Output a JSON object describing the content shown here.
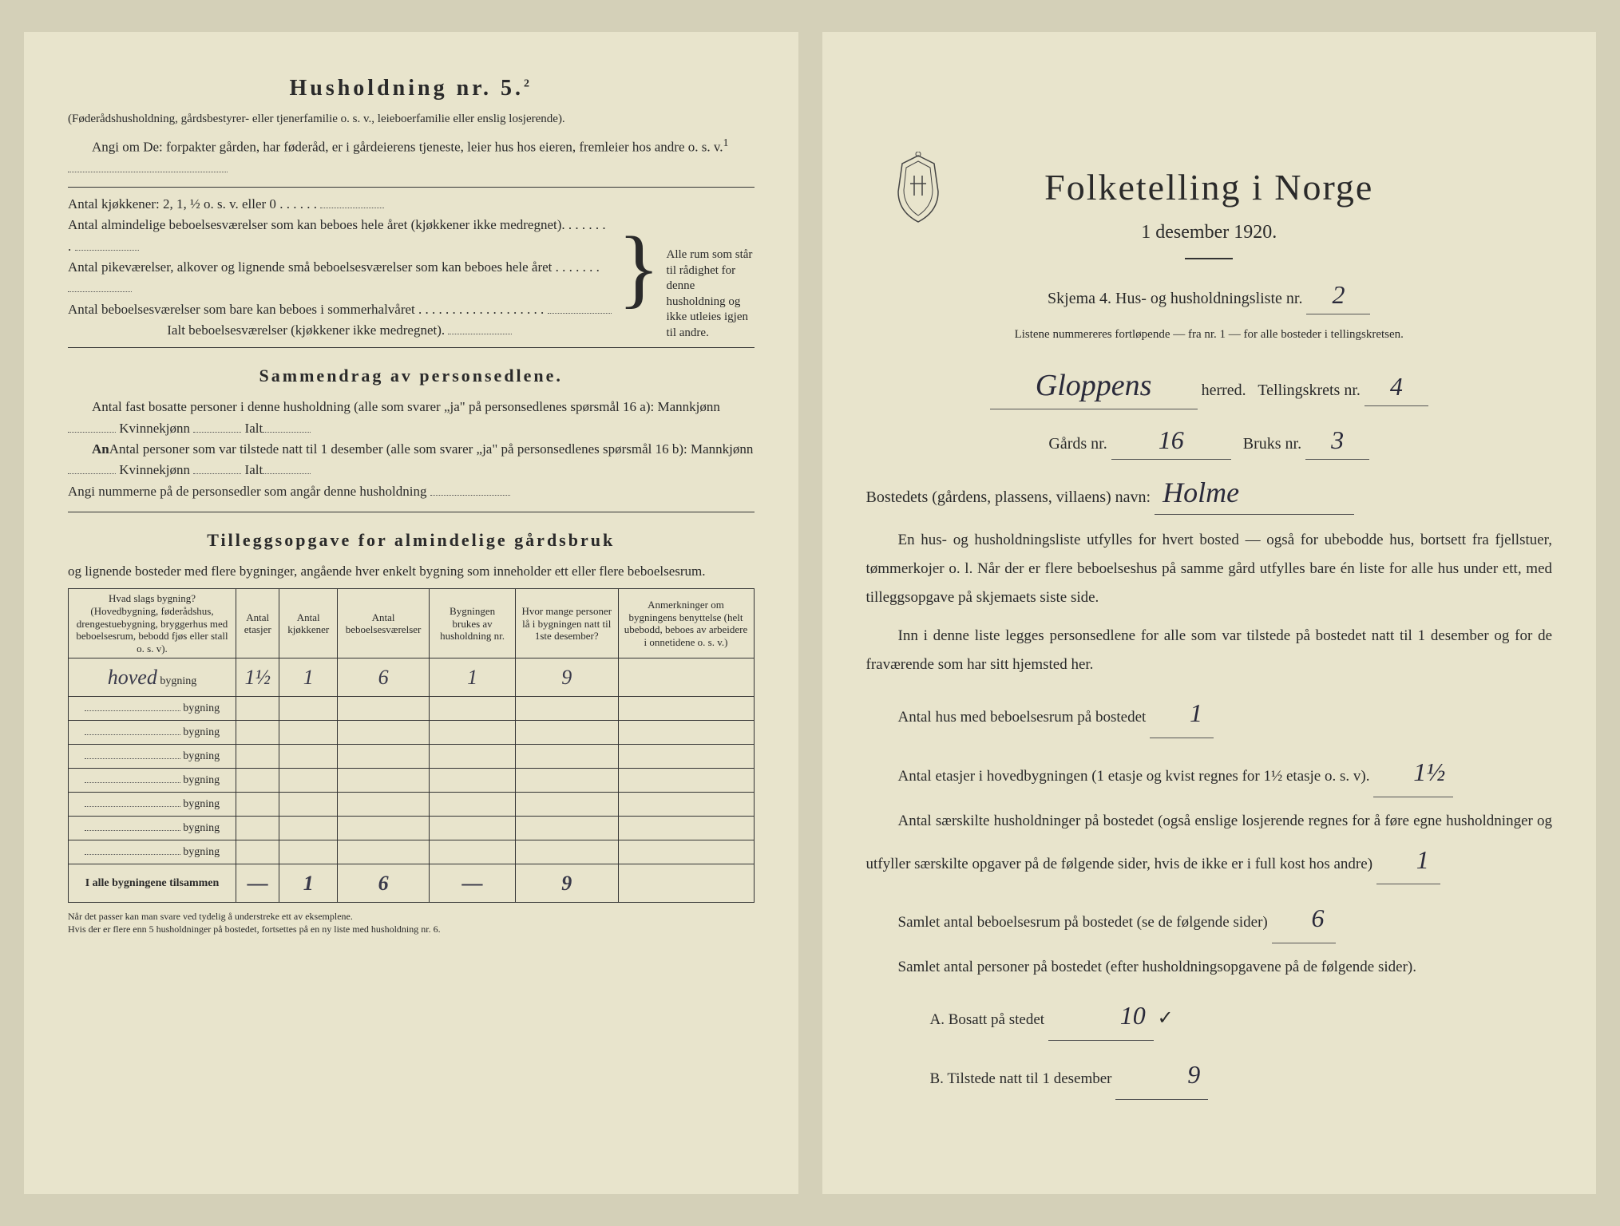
{
  "left": {
    "husholdning_title": "Husholdning nr. 5.",
    "husholdning_sup": "2",
    "husholdning_sub": "(Føderådshusholdning, gårdsbestyrer- eller tjenerfamilie o. s. v., leieboerfamilie eller enslig losjerende).",
    "angi_text": "Angi om De: forpakter gården, har føderåd, er i gårdeierens tjeneste, leier hus hos eieren, fremleier hos andre o. s. v.",
    "angi_sup": "1",
    "kjokken_line": "Antal kjøkkener: 2, 1, ½ o. s. v. eller 0",
    "lines": [
      "Antal almindelige beboelsesværelser som kan beboes hele året (kjøkkener ikke medregnet).",
      "Antal pikeværelser, alkover og lignende små beboelsesværelser som kan beboes hele året",
      "Antal beboelsesværelser som bare kan beboes i sommerhalvåret"
    ],
    "ialt_line": "Ialt beboelsesværelser (kjøkkener ikke medregnet).",
    "bracket_text": "Alle rum som står til rådighet for denne husholdning og ikke utleies igjen til andre.",
    "sammendrag_title": "Sammendrag av personsedlene.",
    "sammendrag_p1a": "Antal fast bosatte personer i denne husholdning (alle som svarer „ja\" på personsedlenes spørsmål 16 a): Mannkjønn",
    "sammendrag_p1b": "Kvinnekjønn",
    "sammendrag_p1c": "Ialt",
    "sammendrag_p2a": "Antal personer som var tilstede natt til 1 desember (alle som svarer „ja\" på personsedlenes spørsmål 16 b): Mannkjønn",
    "sammendrag_p2b": "Kvinnekjønn",
    "sammendrag_p2c": "Ialt",
    "angi_num": "Angi nummerne på de personsedler som angår denne husholdning",
    "tillegg_title": "Tilleggsopgave for almindelige gårdsbruk",
    "tillegg_sub": "og lignende bosteder med flere bygninger, angående hver enkelt bygning som inneholder ett eller flere beboelsesrum.",
    "table": {
      "headers": [
        "Hvad slags bygning?\n(Hovedbygning, føderådshus, drengestuebygning, bryggerhus med beboelsesrum, bebodd fjøs eller stall o. s. v).",
        "Antal etasjer",
        "Antal kjøkkener",
        "Antal beboelsesværelser",
        "Bygningen brukes av husholdning nr.",
        "Hvor mange personer lå i bygningen natt til 1ste desember?",
        "Anmerkninger om bygningens benyttelse (helt ubebodd, beboes av arbeidere i onnetidene o. s. v.)"
      ],
      "rows": [
        {
          "label_hw": "hoved",
          "suffix": "bygning",
          "cells": [
            "1½",
            "1",
            "6",
            "1",
            "9",
            ""
          ]
        },
        {
          "label_hw": "",
          "suffix": "bygning",
          "cells": [
            "",
            "",
            "",
            "",
            "",
            ""
          ]
        },
        {
          "label_hw": "",
          "suffix": "bygning",
          "cells": [
            "",
            "",
            "",
            "",
            "",
            ""
          ]
        },
        {
          "label_hw": "",
          "suffix": "bygning",
          "cells": [
            "",
            "",
            "",
            "",
            "",
            ""
          ]
        },
        {
          "label_hw": "",
          "suffix": "bygning",
          "cells": [
            "",
            "",
            "",
            "",
            "",
            ""
          ]
        },
        {
          "label_hw": "",
          "suffix": "bygning",
          "cells": [
            "",
            "",
            "",
            "",
            "",
            ""
          ]
        },
        {
          "label_hw": "",
          "suffix": "bygning",
          "cells": [
            "",
            "",
            "",
            "",
            "",
            ""
          ]
        },
        {
          "label_hw": "",
          "suffix": "bygning",
          "cells": [
            "",
            "",
            "",
            "",
            "",
            ""
          ]
        }
      ],
      "total_label": "I alle bygningene tilsammen",
      "total_cells": [
        "—",
        "1",
        "6",
        "—",
        "9",
        ""
      ]
    },
    "footnote": "Når det passer kan man svare ved tydelig å understreke ett av eksemplene.\nHvis der er flere enn 5 husholdninger på bostedet, fortsettes på en ny liste med husholdning nr. 6."
  },
  "right": {
    "title": "Folketelling i Norge",
    "date": "1 desember 1920.",
    "skjema_line": "Skjema 4. Hus- og husholdningsliste nr.",
    "skjema_nr": "2",
    "listene": "Listene nummereres fortløpende — fra nr. 1 — for alle bosteder i tellingskretsen.",
    "herred_hw": "Gloppens",
    "herred_label": "herred.",
    "telling_label": "Tellingskrets nr.",
    "telling_nr": "4",
    "gards_label": "Gårds nr.",
    "gards_nr": "16",
    "bruks_label": "Bruks nr.",
    "bruks_nr": "3",
    "bosted_label": "Bostedets (gårdens, plassens, villaens) navn:",
    "bosted_hw": "Holme",
    "para1": "En hus- og husholdningsliste utfylles for hvert bosted — også for ubebodde hus, bortsett fra fjellstuer, tømmerkojer o. l. Når der er flere beboelseshus på samme gård utfylles bare én liste for alle hus under ett, med tilleggsopgave på skjemaets siste side.",
    "para2": "Inn i denne liste legges personsedlene for alle som var tilstede på bostedet natt til 1 desember og for de fraværende som har sitt hjemsted her.",
    "q1_label": "Antal hus med beboelsesrum på bostedet",
    "q1_val": "1",
    "q2_label": "Antal etasjer i hovedbygningen (1 etasje og kvist regnes for 1½ etasje o. s. v).",
    "q2_val": "1½",
    "q3_label": "Antal særskilte husholdninger på bostedet (også enslige losjerende regnes for å føre egne husholdninger og utfyller særskilte opgaver på de følgende sider, hvis de ikke er i full kost hos andre)",
    "q3_val": "1",
    "q4_label": "Samlet antal beboelsesrum på bostedet (se de følgende sider)",
    "q4_val": "6",
    "q5_label": "Samlet antal personer på bostedet (efter husholdningsopgavene på de følgende sider).",
    "qA_label": "A. Bosatt på stedet",
    "qA_val": "10",
    "qB_label": "B. Tilstede natt til 1 desember",
    "qB_val": "9"
  }
}
